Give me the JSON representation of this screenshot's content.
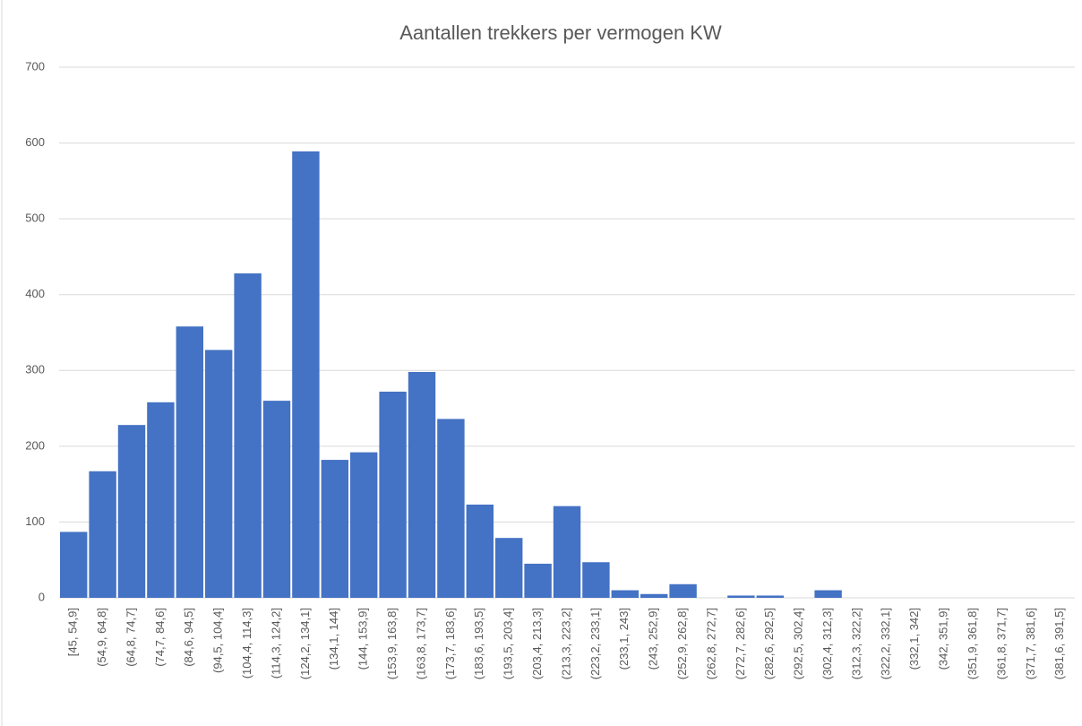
{
  "chart_data": {
    "type": "bar",
    "title": "Aantallen trekkers per vermogen KW",
    "categories": [
      "[45, 54,9]",
      "(54,9, 64,8]",
      "(64,8, 74,7]",
      "(74,7, 84,6]",
      "(84,6, 94,5]",
      "(94,5, 104,4]",
      "(104,4, 114,3]",
      "(114,3, 124,2]",
      "(124,2, 134,1]",
      "(134,1, 144]",
      "(144, 153,9]",
      "(153,9, 163,8]",
      "(163,8, 173,7]",
      "(173,7, 183,6]",
      "(183,6, 193,5]",
      "(193,5, 203,4]",
      "(203,4, 213,3]",
      "(213,3, 223,2]",
      "(223,2, 233,1]",
      "(233,1, 243]",
      "(243, 252,9]",
      "(252,9, 262,8]",
      "(262,8, 272,7]",
      "(272,7, 282,6]",
      "(282,6, 292,5]",
      "(292,5, 302,4]",
      "(302,4, 312,3]",
      "(312,3, 322,2]",
      "(322,2, 332,1]",
      "(332,1, 342]",
      "(342, 351,9]",
      "(351,9, 361,8]",
      "(361,8, 371,7]",
      "(371,7, 381,6]",
      "(381,6, 391,5]"
    ],
    "values": [
      87,
      167,
      228,
      258,
      358,
      327,
      428,
      260,
      589,
      182,
      192,
      272,
      298,
      236,
      123,
      79,
      45,
      121,
      47,
      10,
      5,
      18,
      0,
      3,
      3,
      0,
      10,
      0,
      0,
      0,
      0,
      0,
      0,
      0,
      0
    ],
    "color": "#4472c4",
    "ylim": [
      0,
      700
    ],
    "yticks": [
      0,
      100,
      200,
      300,
      400,
      500,
      600,
      700
    ],
    "grid": true
  }
}
